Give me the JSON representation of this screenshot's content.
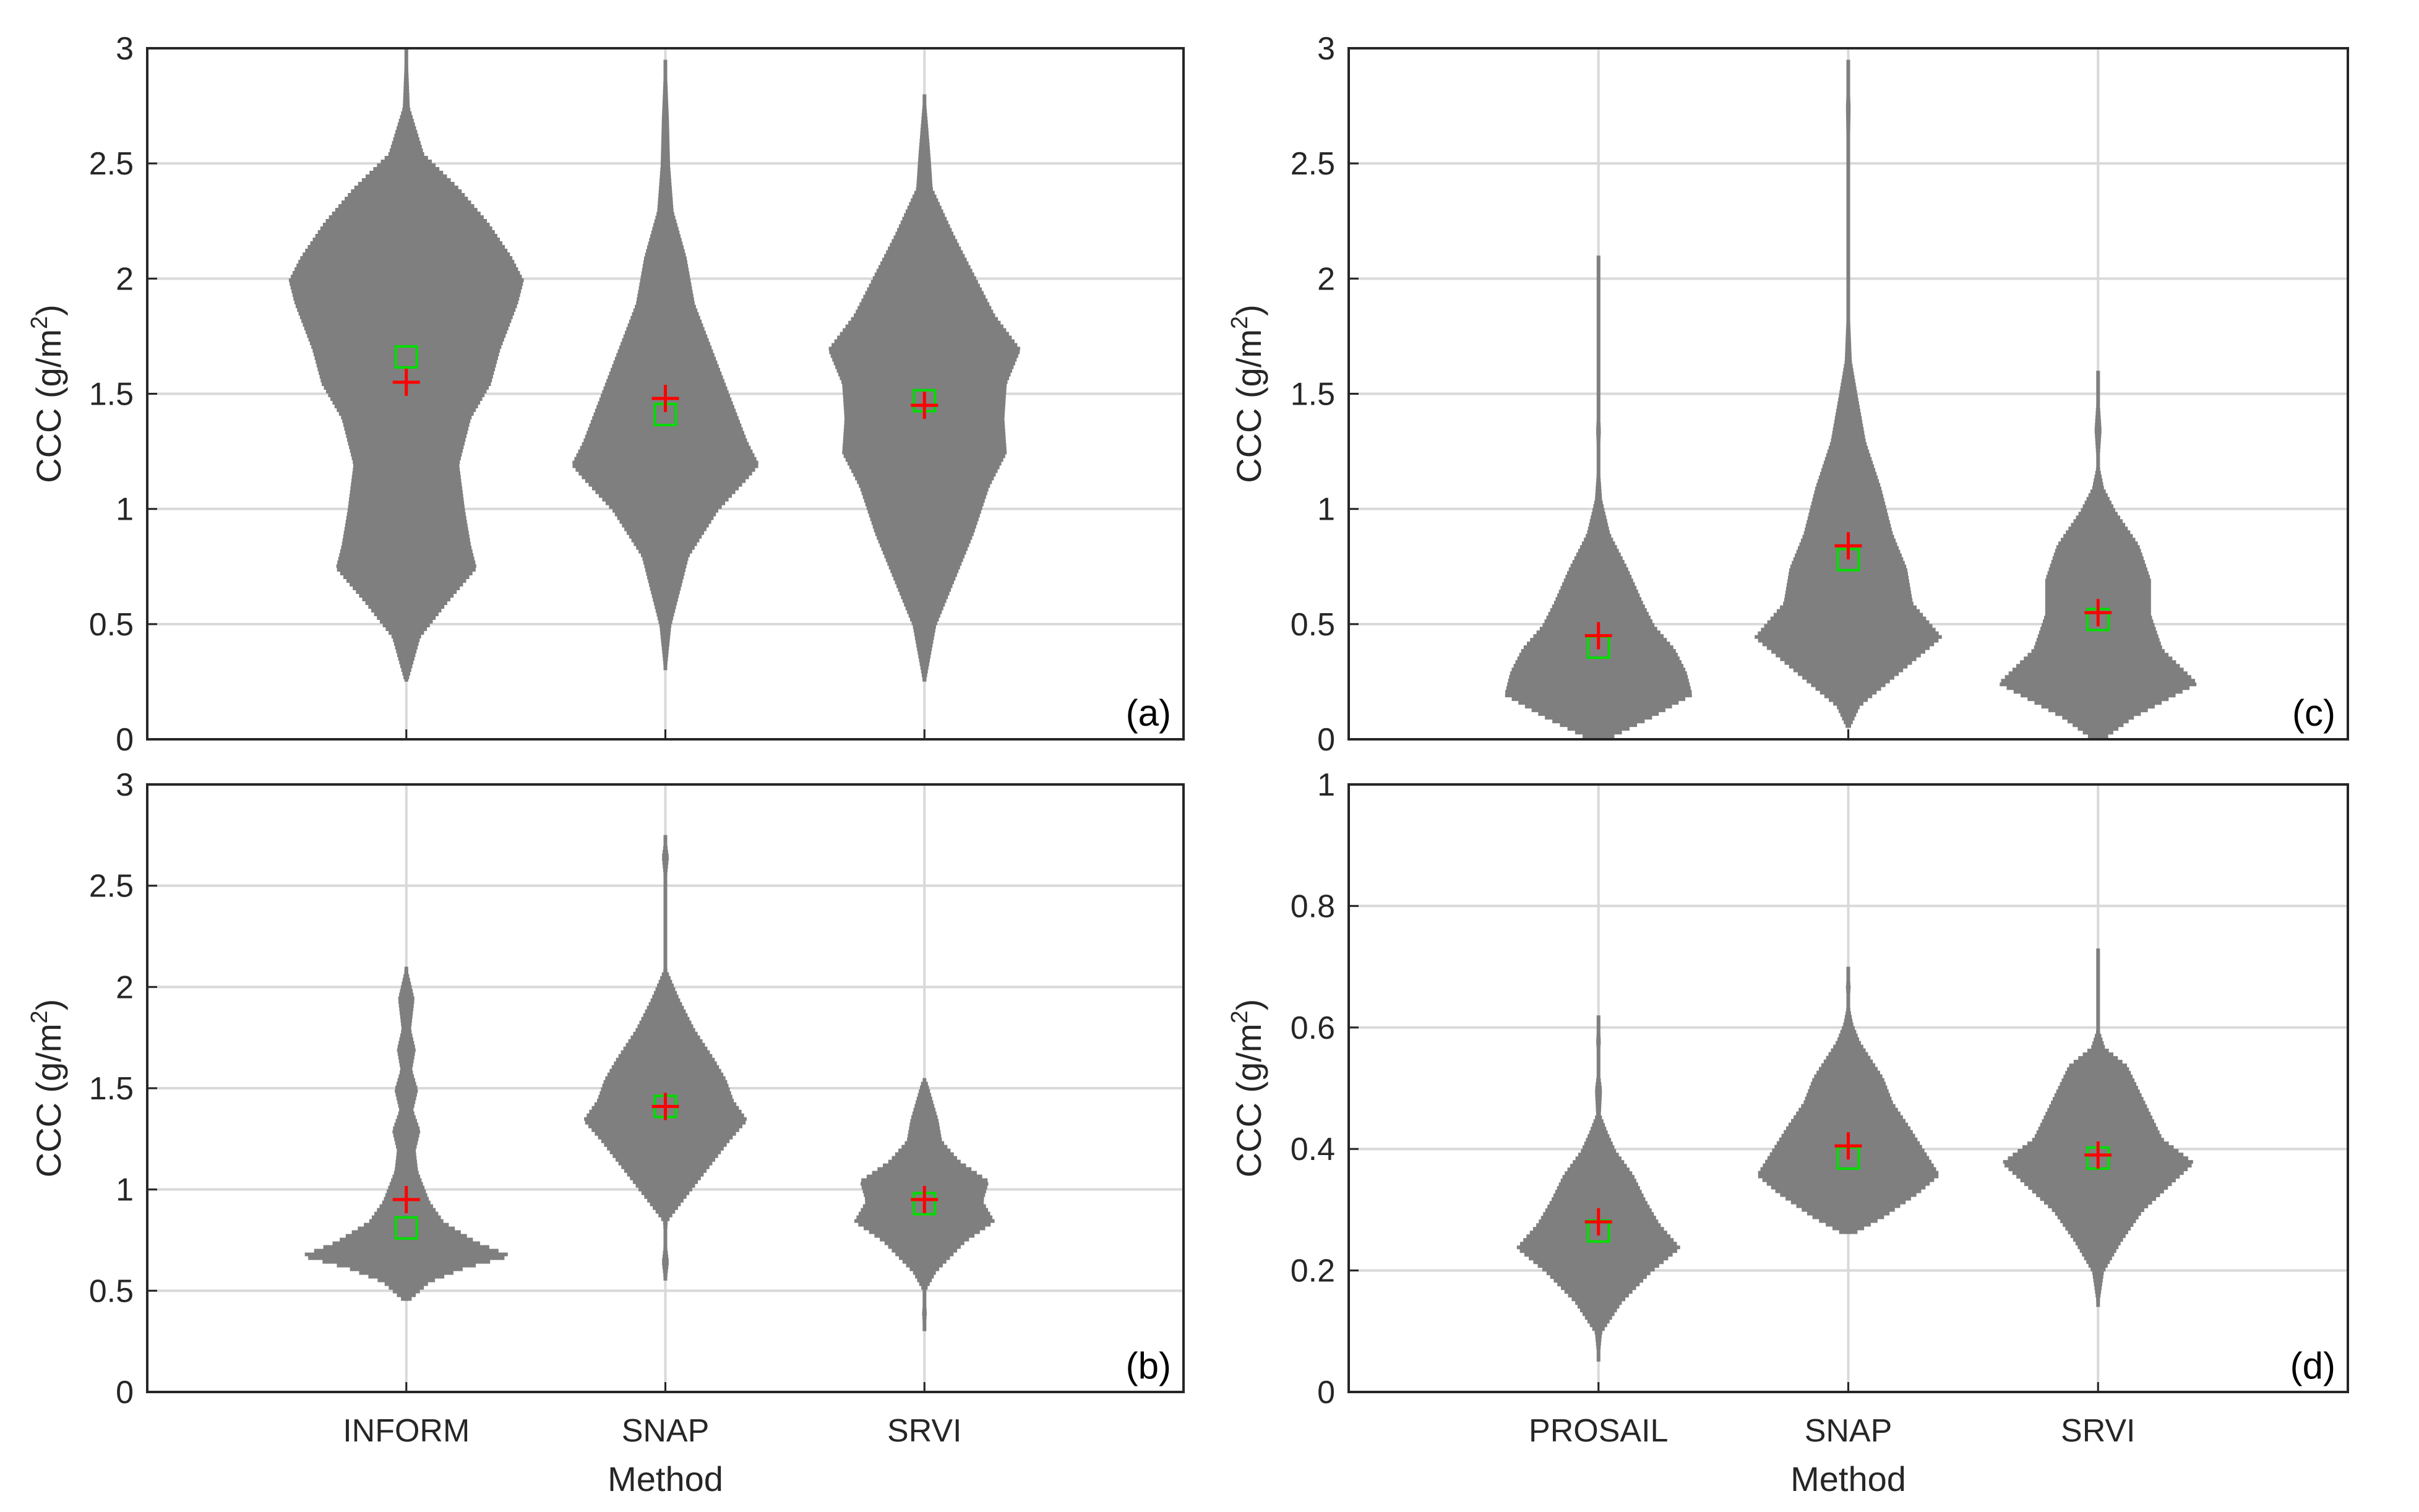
{
  "colors": {
    "violin": "#7f7f7f",
    "mean_marker": "#ff0000",
    "median_marker": "#00dd00",
    "grid": "#d9d9d9",
    "axis": "#262626"
  },
  "chart_data": [
    {
      "type": "violin",
      "panel_label": "(a)",
      "ylabel": "CCC (g/m",
      "ylabel_sup": "2",
      "ylabel_close": ")",
      "xlabel": "",
      "categories": [
        "INFORM",
        "SNAP",
        "SRVI"
      ],
      "show_category_labels": false,
      "ylim": [
        0,
        3
      ],
      "yticks": [
        0,
        0.5,
        1,
        1.5,
        2,
        2.5,
        3
      ],
      "ytick_labels": [
        "0",
        "0.5",
        "1",
        "1.5",
        "2",
        "2.5",
        "3"
      ],
      "grid": true,
      "series": [
        {
          "name": "INFORM",
          "mean": 1.55,
          "median": 1.66,
          "density": [
            [
              0.25,
              0.01
            ],
            [
              0.45,
              0.12
            ],
            [
              0.6,
              0.35
            ],
            [
              0.75,
              0.6
            ],
            [
              0.85,
              0.55
            ],
            [
              1.0,
              0.5
            ],
            [
              1.2,
              0.45
            ],
            [
              1.4,
              0.55
            ],
            [
              1.55,
              0.72
            ],
            [
              1.7,
              0.8
            ],
            [
              1.9,
              0.95
            ],
            [
              2.0,
              1.0
            ],
            [
              2.1,
              0.9
            ],
            [
              2.25,
              0.7
            ],
            [
              2.4,
              0.45
            ],
            [
              2.55,
              0.15
            ],
            [
              2.75,
              0.03
            ],
            [
              3.0,
              0.01
            ]
          ]
        },
        {
          "name": "SNAP",
          "mean": 1.48,
          "median": 1.41,
          "density": [
            [
              0.3,
              0.01
            ],
            [
              0.5,
              0.05
            ],
            [
              0.8,
              0.2
            ],
            [
              1.0,
              0.45
            ],
            [
              1.15,
              0.72
            ],
            [
              1.2,
              0.8
            ],
            [
              1.3,
              0.7
            ],
            [
              1.5,
              0.55
            ],
            [
              1.7,
              0.4
            ],
            [
              1.9,
              0.25
            ],
            [
              2.1,
              0.18
            ],
            [
              2.3,
              0.07
            ],
            [
              2.5,
              0.04
            ],
            [
              2.7,
              0.03
            ],
            [
              2.95,
              0.01
            ]
          ]
        },
        {
          "name": "SRVI",
          "mean": 1.45,
          "median": 1.47,
          "density": [
            [
              0.25,
              0.01
            ],
            [
              0.5,
              0.1
            ],
            [
              0.75,
              0.3
            ],
            [
              0.9,
              0.42
            ],
            [
              1.1,
              0.55
            ],
            [
              1.25,
              0.7
            ],
            [
              1.4,
              0.68
            ],
            [
              1.55,
              0.7
            ],
            [
              1.7,
              0.82
            ],
            [
              1.85,
              0.6
            ],
            [
              2.0,
              0.45
            ],
            [
              2.2,
              0.25
            ],
            [
              2.4,
              0.07
            ],
            [
              2.55,
              0.05
            ],
            [
              2.8,
              0.01
            ]
          ]
        }
      ]
    },
    {
      "type": "violin",
      "panel_label": "(b)",
      "ylabel": "CCC (g/m",
      "ylabel_sup": "2",
      "ylabel_close": ")",
      "xlabel": "Method",
      "categories": [
        "INFORM",
        "SNAP",
        "SRVI"
      ],
      "show_category_labels": true,
      "ylim": [
        0,
        3
      ],
      "yticks": [
        0,
        0.5,
        1,
        1.5,
        2,
        2.5,
        3
      ],
      "ytick_labels": [
        "0",
        "0.5",
        "1",
        "1.5",
        "2",
        "2.5",
        "3"
      ],
      "grid": true,
      "series": [
        {
          "name": "INFORM",
          "mean": 0.95,
          "median": 0.81,
          "density": [
            [
              0.45,
              0.01
            ],
            [
              0.55,
              0.2
            ],
            [
              0.62,
              0.5
            ],
            [
              0.68,
              0.9
            ],
            [
              0.75,
              0.6
            ],
            [
              0.85,
              0.32
            ],
            [
              0.95,
              0.2
            ],
            [
              1.1,
              0.1
            ],
            [
              1.2,
              0.08
            ],
            [
              1.3,
              0.12
            ],
            [
              1.4,
              0.06
            ],
            [
              1.5,
              0.1
            ],
            [
              1.6,
              0.05
            ],
            [
              1.7,
              0.08
            ],
            [
              1.8,
              0.04
            ],
            [
              1.95,
              0.07
            ],
            [
              2.1,
              0.01
            ]
          ]
        },
        {
          "name": "SNAP",
          "mean": 1.41,
          "median": 1.41,
          "density": [
            [
              0.55,
              0.01
            ],
            [
              0.65,
              0.03
            ],
            [
              0.75,
              0.01
            ],
            [
              0.85,
              0.02
            ],
            [
              0.95,
              0.15
            ],
            [
              1.1,
              0.35
            ],
            [
              1.25,
              0.55
            ],
            [
              1.35,
              0.7
            ],
            [
              1.45,
              0.58
            ],
            [
              1.55,
              0.52
            ],
            [
              1.65,
              0.42
            ],
            [
              1.8,
              0.25
            ],
            [
              1.95,
              0.12
            ],
            [
              2.1,
              0.01
            ],
            [
              2.5,
              0.005
            ],
            [
              2.65,
              0.03
            ],
            [
              2.75,
              0.005
            ]
          ]
        },
        {
          "name": "SRVI",
          "mean": 0.95,
          "median": 0.93,
          "density": [
            [
              0.3,
              0.01
            ],
            [
              0.4,
              0.02
            ],
            [
              0.5,
              0.005
            ],
            [
              0.6,
              0.1
            ],
            [
              0.75,
              0.35
            ],
            [
              0.85,
              0.6
            ],
            [
              0.95,
              0.5
            ],
            [
              1.05,
              0.55
            ],
            [
              1.15,
              0.3
            ],
            [
              1.25,
              0.15
            ],
            [
              1.35,
              0.12
            ],
            [
              1.45,
              0.07
            ],
            [
              1.55,
              0.02
            ]
          ]
        }
      ]
    },
    {
      "type": "violin",
      "panel_label": "(c)",
      "ylabel": "CCC (g/m",
      "ylabel_sup": "2",
      "ylabel_close": ")",
      "xlabel": "",
      "categories": [
        "PROSAIL",
        "SNAP",
        "SRVI"
      ],
      "show_category_labels": false,
      "ylim": [
        0,
        3
      ],
      "yticks": [
        0,
        0.5,
        1,
        1.5,
        2,
        2.5,
        3
      ],
      "ytick_labels": [
        "0",
        "0.5",
        "1",
        "1.5",
        "2",
        "2.5",
        "3"
      ],
      "grid": true,
      "series": [
        {
          "name": "PROSAIL",
          "mean": 0.45,
          "median": 0.4,
          "density": [
            [
              0.0,
              0.05
            ],
            [
              0.1,
              0.45
            ],
            [
              0.2,
              0.8
            ],
            [
              0.3,
              0.75
            ],
            [
              0.4,
              0.65
            ],
            [
              0.5,
              0.48
            ],
            [
              0.6,
              0.38
            ],
            [
              0.75,
              0.25
            ],
            [
              0.9,
              0.1
            ],
            [
              1.05,
              0.03
            ],
            [
              1.2,
              0.01
            ],
            [
              1.35,
              0.02
            ],
            [
              1.5,
              0.005
            ],
            [
              1.65,
              0.005
            ],
            [
              1.8,
              0.01
            ],
            [
              1.95,
              0.015
            ],
            [
              2.1,
              0.005
            ]
          ]
        },
        {
          "name": "SNAP",
          "mean": 0.84,
          "median": 0.78,
          "density": [
            [
              0.05,
              0.01
            ],
            [
              0.15,
              0.1
            ],
            [
              0.3,
              0.45
            ],
            [
              0.45,
              0.8
            ],
            [
              0.6,
              0.55
            ],
            [
              0.75,
              0.5
            ],
            [
              0.9,
              0.38
            ],
            [
              1.1,
              0.28
            ],
            [
              1.3,
              0.15
            ],
            [
              1.5,
              0.08
            ],
            [
              1.65,
              0.03
            ],
            [
              1.9,
              0.01
            ],
            [
              2.3,
              0.01
            ],
            [
              2.6,
              0.015
            ],
            [
              2.75,
              0.02
            ],
            [
              2.95,
              0.005
            ]
          ]
        },
        {
          "name": "SRVI",
          "mean": 0.55,
          "median": 0.52,
          "density": [
            [
              0.0,
              0.03
            ],
            [
              0.1,
              0.3
            ],
            [
              0.25,
              0.85
            ],
            [
              0.4,
              0.55
            ],
            [
              0.55,
              0.45
            ],
            [
              0.7,
              0.45
            ],
            [
              0.85,
              0.35
            ],
            [
              1.0,
              0.15
            ],
            [
              1.1,
              0.05
            ],
            [
              1.2,
              0.01
            ],
            [
              1.35,
              0.03
            ],
            [
              1.5,
              0.01
            ],
            [
              1.6,
              0.005
            ]
          ]
        }
      ]
    },
    {
      "type": "violin",
      "panel_label": "(d)",
      "ylabel": "CCC (g/m",
      "ylabel_sup": "2",
      "ylabel_close": ")",
      "xlabel": "Method",
      "categories": [
        "PROSAIL",
        "SNAP",
        "SRVI"
      ],
      "show_category_labels": true,
      "ylim": [
        0,
        1
      ],
      "yticks": [
        0,
        0.2,
        0.4,
        0.6,
        0.8,
        1
      ],
      "ytick_labels": [
        "0",
        "0.2",
        "0.4",
        "0.6",
        "0.8",
        "1"
      ],
      "grid": true,
      "series": [
        {
          "name": "PROSAIL",
          "mean": 0.28,
          "median": 0.265,
          "density": [
            [
              0.05,
              0.005
            ],
            [
              0.1,
              0.03
            ],
            [
              0.15,
              0.2
            ],
            [
              0.2,
              0.45
            ],
            [
              0.24,
              0.7
            ],
            [
              0.28,
              0.52
            ],
            [
              0.32,
              0.4
            ],
            [
              0.36,
              0.3
            ],
            [
              0.4,
              0.15
            ],
            [
              0.43,
              0.08
            ],
            [
              0.46,
              0.02
            ],
            [
              0.5,
              0.03
            ],
            [
              0.54,
              0.005
            ],
            [
              0.58,
              0.02
            ],
            [
              0.62,
              0.005
            ]
          ]
        },
        {
          "name": "SNAP",
          "mean": 0.405,
          "median": 0.385,
          "density": [
            [
              0.26,
              0.02
            ],
            [
              0.29,
              0.3
            ],
            [
              0.33,
              0.6
            ],
            [
              0.36,
              0.78
            ],
            [
              0.4,
              0.65
            ],
            [
              0.44,
              0.52
            ],
            [
              0.48,
              0.38
            ],
            [
              0.52,
              0.3
            ],
            [
              0.55,
              0.2
            ],
            [
              0.58,
              0.1
            ],
            [
              0.61,
              0.04
            ],
            [
              0.64,
              0.01
            ],
            [
              0.67,
              0.02
            ],
            [
              0.7,
              0.005
            ]
          ]
        },
        {
          "name": "SRVI",
          "mean": 0.39,
          "median": 0.385,
          "density": [
            [
              0.14,
              0.005
            ],
            [
              0.2,
              0.05
            ],
            [
              0.25,
              0.2
            ],
            [
              0.3,
              0.38
            ],
            [
              0.34,
              0.6
            ],
            [
              0.38,
              0.82
            ],
            [
              0.42,
              0.55
            ],
            [
              0.46,
              0.45
            ],
            [
              0.5,
              0.35
            ],
            [
              0.54,
              0.25
            ],
            [
              0.57,
              0.06
            ],
            [
              0.6,
              0.01
            ],
            [
              0.63,
              0.005
            ],
            [
              0.68,
              0.01
            ],
            [
              0.73,
              0.005
            ]
          ]
        }
      ]
    }
  ]
}
